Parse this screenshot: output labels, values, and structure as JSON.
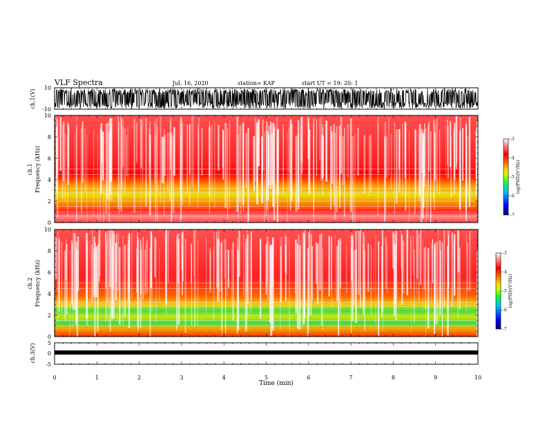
{
  "header": {
    "title": "VLF Spectra",
    "date": "Jul. 16, 2020",
    "station": "station= KAP",
    "start_ut": "start UT =  19: 20: 1"
  },
  "colorbar": {
    "label": "log(PSD)(V²/Hz)",
    "ticks": [
      "-3",
      "-4",
      "-5",
      "-6",
      "-7"
    ],
    "colors": [
      "#000080",
      "#0000ff",
      "#00c0ff",
      "#00ff40",
      "#c0ff00",
      "#ffd000",
      "#ff6000",
      "#ff0000",
      "#ff9090",
      "#ffffff"
    ]
  },
  "chart_data": [
    {
      "type": "line",
      "name": "ch1-waveform",
      "ylabel": "ch.1(V)",
      "ylim": [
        -10,
        10
      ],
      "yticks": [
        "10",
        "-10"
      ],
      "xlim": [
        0,
        10
      ],
      "line_color": "#000000"
    },
    {
      "type": "heatmap",
      "name": "ch1-spectrogram",
      "ylabel": "ch.1\nFrequency (kHz)",
      "ylim": [
        0,
        10
      ],
      "yticks": [
        "0",
        "2",
        "4",
        "6",
        "8",
        "10"
      ],
      "xlim": [
        0,
        10
      ]
    },
    {
      "type": "heatmap",
      "name": "ch2-spectrogram",
      "ylabel": "ch.2\nFrequency (kHz)",
      "ylim": [
        0,
        10
      ],
      "yticks": [
        "0",
        "2",
        "4",
        "6",
        "8",
        "10"
      ],
      "xlim": [
        0,
        10
      ]
    },
    {
      "type": "line",
      "name": "ch3-waveform",
      "ylabel": "ch.3(V)",
      "ylim": [
        -5,
        5
      ],
      "yticks": [
        "5",
        "0",
        "-5"
      ],
      "xlim": [
        0,
        10
      ],
      "line_color": "#000000"
    }
  ],
  "xaxis": {
    "label": "Time (min)",
    "ticks": [
      "0",
      "1",
      "2",
      "3",
      "4",
      "5",
      "6",
      "7",
      "8",
      "9",
      "10"
    ]
  }
}
